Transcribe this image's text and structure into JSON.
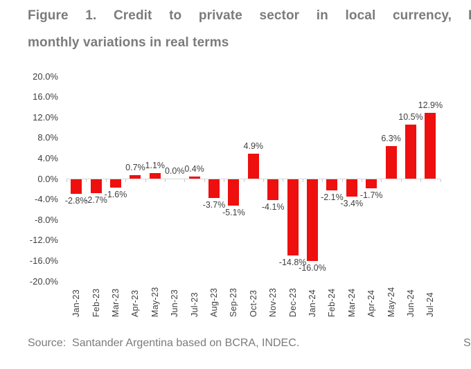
{
  "figure": {
    "title_line1": "Figure 1.   Credit to private sector in local currency,",
    "title_line2": "monthly variations in real terms",
    "source": "Source:  Santander Argentina based on BCRA, INDEC.",
    "clipped_next_column": {
      "top_fragment": "F",
      "bottom_fragment": "S"
    }
  },
  "colors": {
    "bar": "#ee0f0f",
    "title_text": "#7b7b7b",
    "axis_line": "#d6d6d6",
    "tick_mark": "#c6c6c6",
    "label_text": "#3f3f3f",
    "background": "#ffffff"
  },
  "chart_data": {
    "type": "bar",
    "title": "Credit to private sector in local currency, monthly variations in real terms",
    "categories": [
      "Jan-23",
      "Feb-23",
      "Mar-23",
      "Apr-23",
      "May-23",
      "Jun-23",
      "Jul-23",
      "Aug-23",
      "Sep-23",
      "Oct-23",
      "Nov-23",
      "Dec-23",
      "Jan-24",
      "Feb-24",
      "Mar-24",
      "Apr-24",
      "May-24",
      "Jun-24",
      "Jul-24"
    ],
    "values": [
      -2.8,
      -2.7,
      -1.6,
      0.7,
      1.1,
      0.0,
      0.4,
      -3.7,
      -5.1,
      4.9,
      -4.1,
      -14.8,
      -16.0,
      -2.1,
      -3.4,
      -1.7,
      6.3,
      10.5,
      12.9
    ],
    "data_labels": [
      "-2.8%",
      "-2.7%",
      "-1.6%",
      "0.7%",
      "1.1%",
      "0.0%",
      "0.4%",
      "-3.7%",
      "-5.1%",
      "4.9%",
      "-4.1%",
      "-14.8%",
      "-16.0%",
      "-2.1%",
      "-3.4%",
      "-1.7%",
      "6.3%",
      "10.5%",
      "12.9%"
    ],
    "xlabel": "",
    "ylabel": "",
    "ylim": [
      -20,
      20
    ],
    "y_tick_step": 4,
    "y_tick_labels": [
      "20.0%",
      "16.0%",
      "12.0%",
      "8.0%",
      "4.0%",
      "0.0%",
      "-4.0%",
      "-8.0%",
      "-12.0%",
      "-16.0%",
      "-20.0%"
    ],
    "x_tick_rotation": 90,
    "grid": false,
    "legend": false,
    "bar_color": "#ee0f0f"
  }
}
